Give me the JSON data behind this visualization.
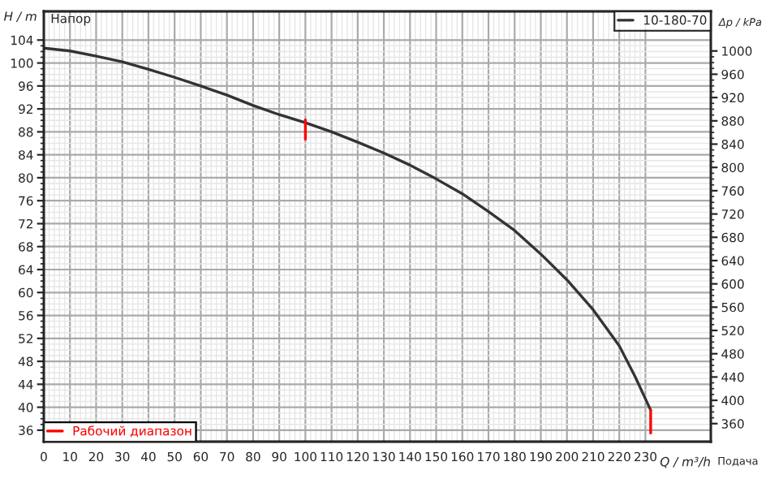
{
  "chart_data": {
    "type": "line",
    "xlabel": "Q / m³/h",
    "ylabel": "H / m",
    "y2label": "Δp / kPa",
    "annotations": [
      "Напор",
      "Подача"
    ],
    "series": [
      {
        "name": "10-180-70",
        "color": "#333333",
        "x": [
          0,
          10,
          20,
          30,
          40,
          50,
          60,
          70,
          80,
          90,
          100,
          110,
          120,
          130,
          140,
          150,
          160,
          170,
          180,
          190,
          200,
          210,
          220,
          226,
          232
        ],
        "values": [
          102.6,
          102.1,
          101.2,
          100.2,
          98.9,
          97.5,
          96.0,
          94.4,
          92.6,
          91.0,
          89.6,
          88.0,
          86.2,
          84.3,
          82.2,
          79.8,
          77.2,
          74.1,
          70.8,
          66.7,
          62.2,
          57.0,
          50.7,
          45.4,
          39.5
        ]
      },
      {
        "name": "Рабочий диапазон",
        "color": "#ff0000",
        "x": [
          100,
          100,
          null,
          232,
          232
        ],
        "values": [
          90.1,
          86.7,
          null,
          39.5,
          35.5
        ]
      }
    ],
    "xlim": [
      0,
      255
    ],
    "xticks": [
      0,
      10,
      20,
      30,
      40,
      50,
      60,
      70,
      80,
      90,
      100,
      110,
      120,
      130,
      140,
      150,
      160,
      170,
      180,
      190,
      200,
      210,
      220,
      230
    ],
    "ylim": [
      34,
      109
    ],
    "yticks": [
      36,
      40,
      44,
      48,
      52,
      56,
      60,
      64,
      68,
      72,
      76,
      80,
      84,
      88,
      92,
      96,
      100,
      104
    ],
    "y2lim": [
      329,
      1068
    ],
    "y2ticks": [
      360,
      400,
      440,
      480,
      520,
      560,
      600,
      640,
      680,
      720,
      760,
      800,
      840,
      880,
      920,
      960,
      1000
    ],
    "grid": true,
    "legend": "top right"
  }
}
